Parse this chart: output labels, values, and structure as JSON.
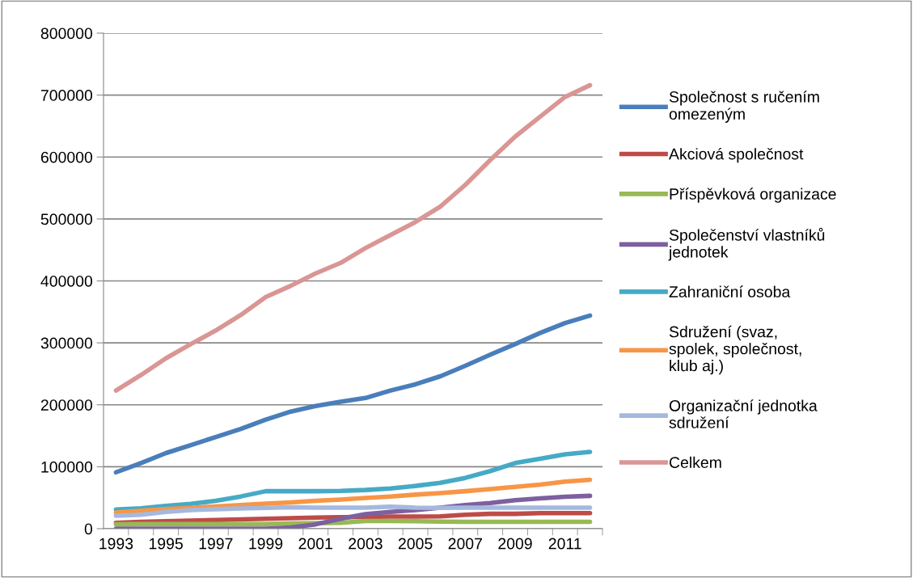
{
  "chart_data": {
    "type": "line",
    "categories": [
      "1993",
      null,
      "1995",
      null,
      "1997",
      null,
      "1999",
      null,
      "2001",
      null,
      "2003",
      null,
      "2005",
      null,
      "2007",
      null,
      "2009",
      null,
      "2011",
      null
    ],
    "series": [
      {
        "name": "Společnost s ručením omezeným",
        "color": "#4a7ebb",
        "values": [
          91000,
          106000,
          122000,
          135000,
          148000,
          161000,
          176000,
          189000,
          198000,
          205000,
          211000,
          223000,
          233000,
          246000,
          263000,
          281000,
          298000,
          316000,
          332000,
          344000
        ]
      },
      {
        "name": "Akciová společnost",
        "color": "#be4b48",
        "values": [
          9500,
          11000,
          12000,
          13000,
          14000,
          15000,
          16000,
          17000,
          18000,
          18500,
          19000,
          19500,
          19500,
          20000,
          22500,
          24000,
          24000,
          25000,
          25000,
          25000
        ]
      },
      {
        "name": "Příspěvková organizace",
        "color": "#98b954",
        "values": [
          7000,
          7500,
          7500,
          7500,
          7500,
          7500,
          7500,
          8500,
          9000,
          9500,
          12500,
          12500,
          12000,
          11500,
          11000,
          11000,
          11000,
          11000,
          11000,
          11000
        ]
      },
      {
        "name": "Společenství vlastníků jednotek",
        "color": "#7d60a0",
        "values": [
          0,
          0,
          0,
          0,
          0,
          0,
          0,
          2000,
          7000,
          16000,
          23500,
          27000,
          30000,
          34000,
          38000,
          41500,
          46000,
          49000,
          51500,
          53000
        ]
      },
      {
        "name": "Zahraniční osoba",
        "color": "#46aac5",
        "values": [
          31000,
          33000,
          37000,
          40000,
          45000,
          52000,
          60500,
          60500,
          60500,
          61000,
          62500,
          65000,
          69000,
          74000,
          82000,
          93000,
          106000,
          113000,
          120000,
          124000
        ]
      },
      {
        "name": "Sdružení (svaz, spolek, společnost, klub aj.)",
        "color": "#f79646",
        "values": [
          26000,
          29000,
          31500,
          33500,
          36000,
          38000,
          40500,
          42500,
          45000,
          47000,
          49500,
          52000,
          55000,
          57500,
          60500,
          64000,
          67500,
          71000,
          76000,
          79000
        ]
      },
      {
        "name": "Organizační jednotka sdružení",
        "color": "#a5b8de",
        "values": [
          21000,
          22500,
          27000,
          30000,
          31500,
          32500,
          33500,
          34500,
          34000,
          34000,
          34000,
          35500,
          34000,
          33500,
          34000,
          34000,
          34000,
          34000,
          34000,
          34000
        ]
      },
      {
        "name": "Celkem",
        "color": "#d99694",
        "values": [
          223000,
          248000,
          275000,
          298000,
          320000,
          345000,
          374000,
          392000,
          412000,
          429000,
          453000,
          474000,
          495000,
          520000,
          555000,
          595000,
          633000,
          665000,
          697000,
          716000
        ]
      }
    ],
    "ylim": [
      0,
      800000
    ],
    "yticks": [
      0,
      100000,
      200000,
      300000,
      400000,
      500000,
      600000,
      700000,
      800000
    ],
    "grid": "y",
    "legend": "right",
    "marker": "none",
    "line_style": "solid"
  }
}
